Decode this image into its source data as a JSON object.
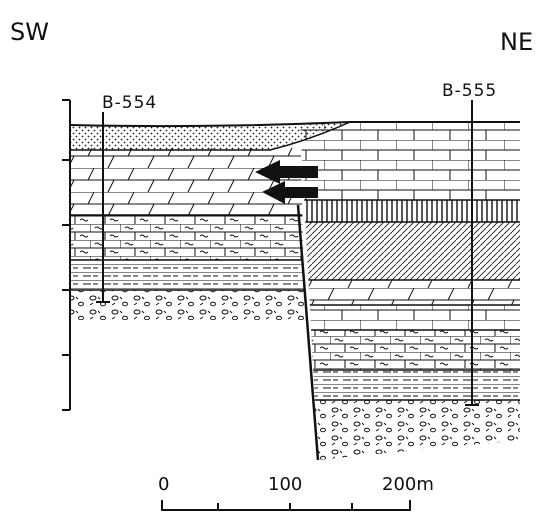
{
  "labels": {
    "sw": "SW",
    "ne": "NE"
  },
  "boreholes": [
    {
      "label": "B-554"
    },
    {
      "label": "B-555"
    }
  ],
  "scale": {
    "labels": [
      "0",
      "100",
      "200m"
    ]
  }
}
